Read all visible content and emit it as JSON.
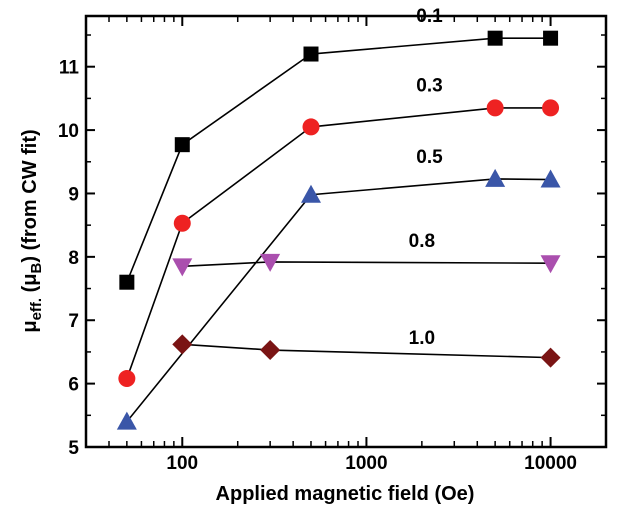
{
  "chart_data": {
    "type": "scatter",
    "title": "",
    "xlabel": "Applied magnetic field (Oe)",
    "ylabel_main": "μ",
    "ylabel_sub": "eff.",
    "ylabel_mid": " (μ",
    "ylabel_sub2": "B",
    "ylabel_tail": ") (from CW fit)",
    "xscale": "log",
    "xlim": [
      30,
      20000
    ],
    "ylim": [
      5,
      11.8
    ],
    "xticks": [
      100,
      1000,
      10000
    ],
    "xtick_labels": [
      "100",
      "1000",
      "10000"
    ],
    "yticks": [
      5,
      6,
      7,
      8,
      9,
      10,
      11
    ],
    "ytick_labels": [
      "5",
      "6",
      "7",
      "8",
      "9",
      "10",
      "11"
    ],
    "grid": false,
    "legend": "none",
    "series": [
      {
        "name": "0.1",
        "marker": "square",
        "color": "#000000",
        "x": [
          50,
          100,
          500,
          5000,
          10000
        ],
        "y": [
          7.6,
          9.77,
          11.2,
          11.45,
          11.45
        ]
      },
      {
        "name": "0.3",
        "marker": "circle",
        "color": "#ee2222",
        "x": [
          50,
          100,
          500,
          5000,
          10000
        ],
        "y": [
          6.08,
          8.53,
          10.05,
          10.35,
          10.35
        ]
      },
      {
        "name": "0.5",
        "marker": "triangle-up",
        "color": "#3a56a8",
        "x": [
          50,
          500,
          5000,
          10000
        ],
        "y": [
          5.4,
          8.98,
          9.23,
          9.22
        ]
      },
      {
        "name": "0.8",
        "marker": "triangle-down",
        "color": "#aa4fae",
        "x": [
          100,
          300,
          10000
        ],
        "y": [
          7.85,
          7.92,
          7.9
        ]
      },
      {
        "name": "1.0",
        "marker": "diamond",
        "color": "#7a1414",
        "x": [
          100,
          300,
          10000
        ],
        "y": [
          6.62,
          6.53,
          6.41
        ]
      }
    ]
  }
}
